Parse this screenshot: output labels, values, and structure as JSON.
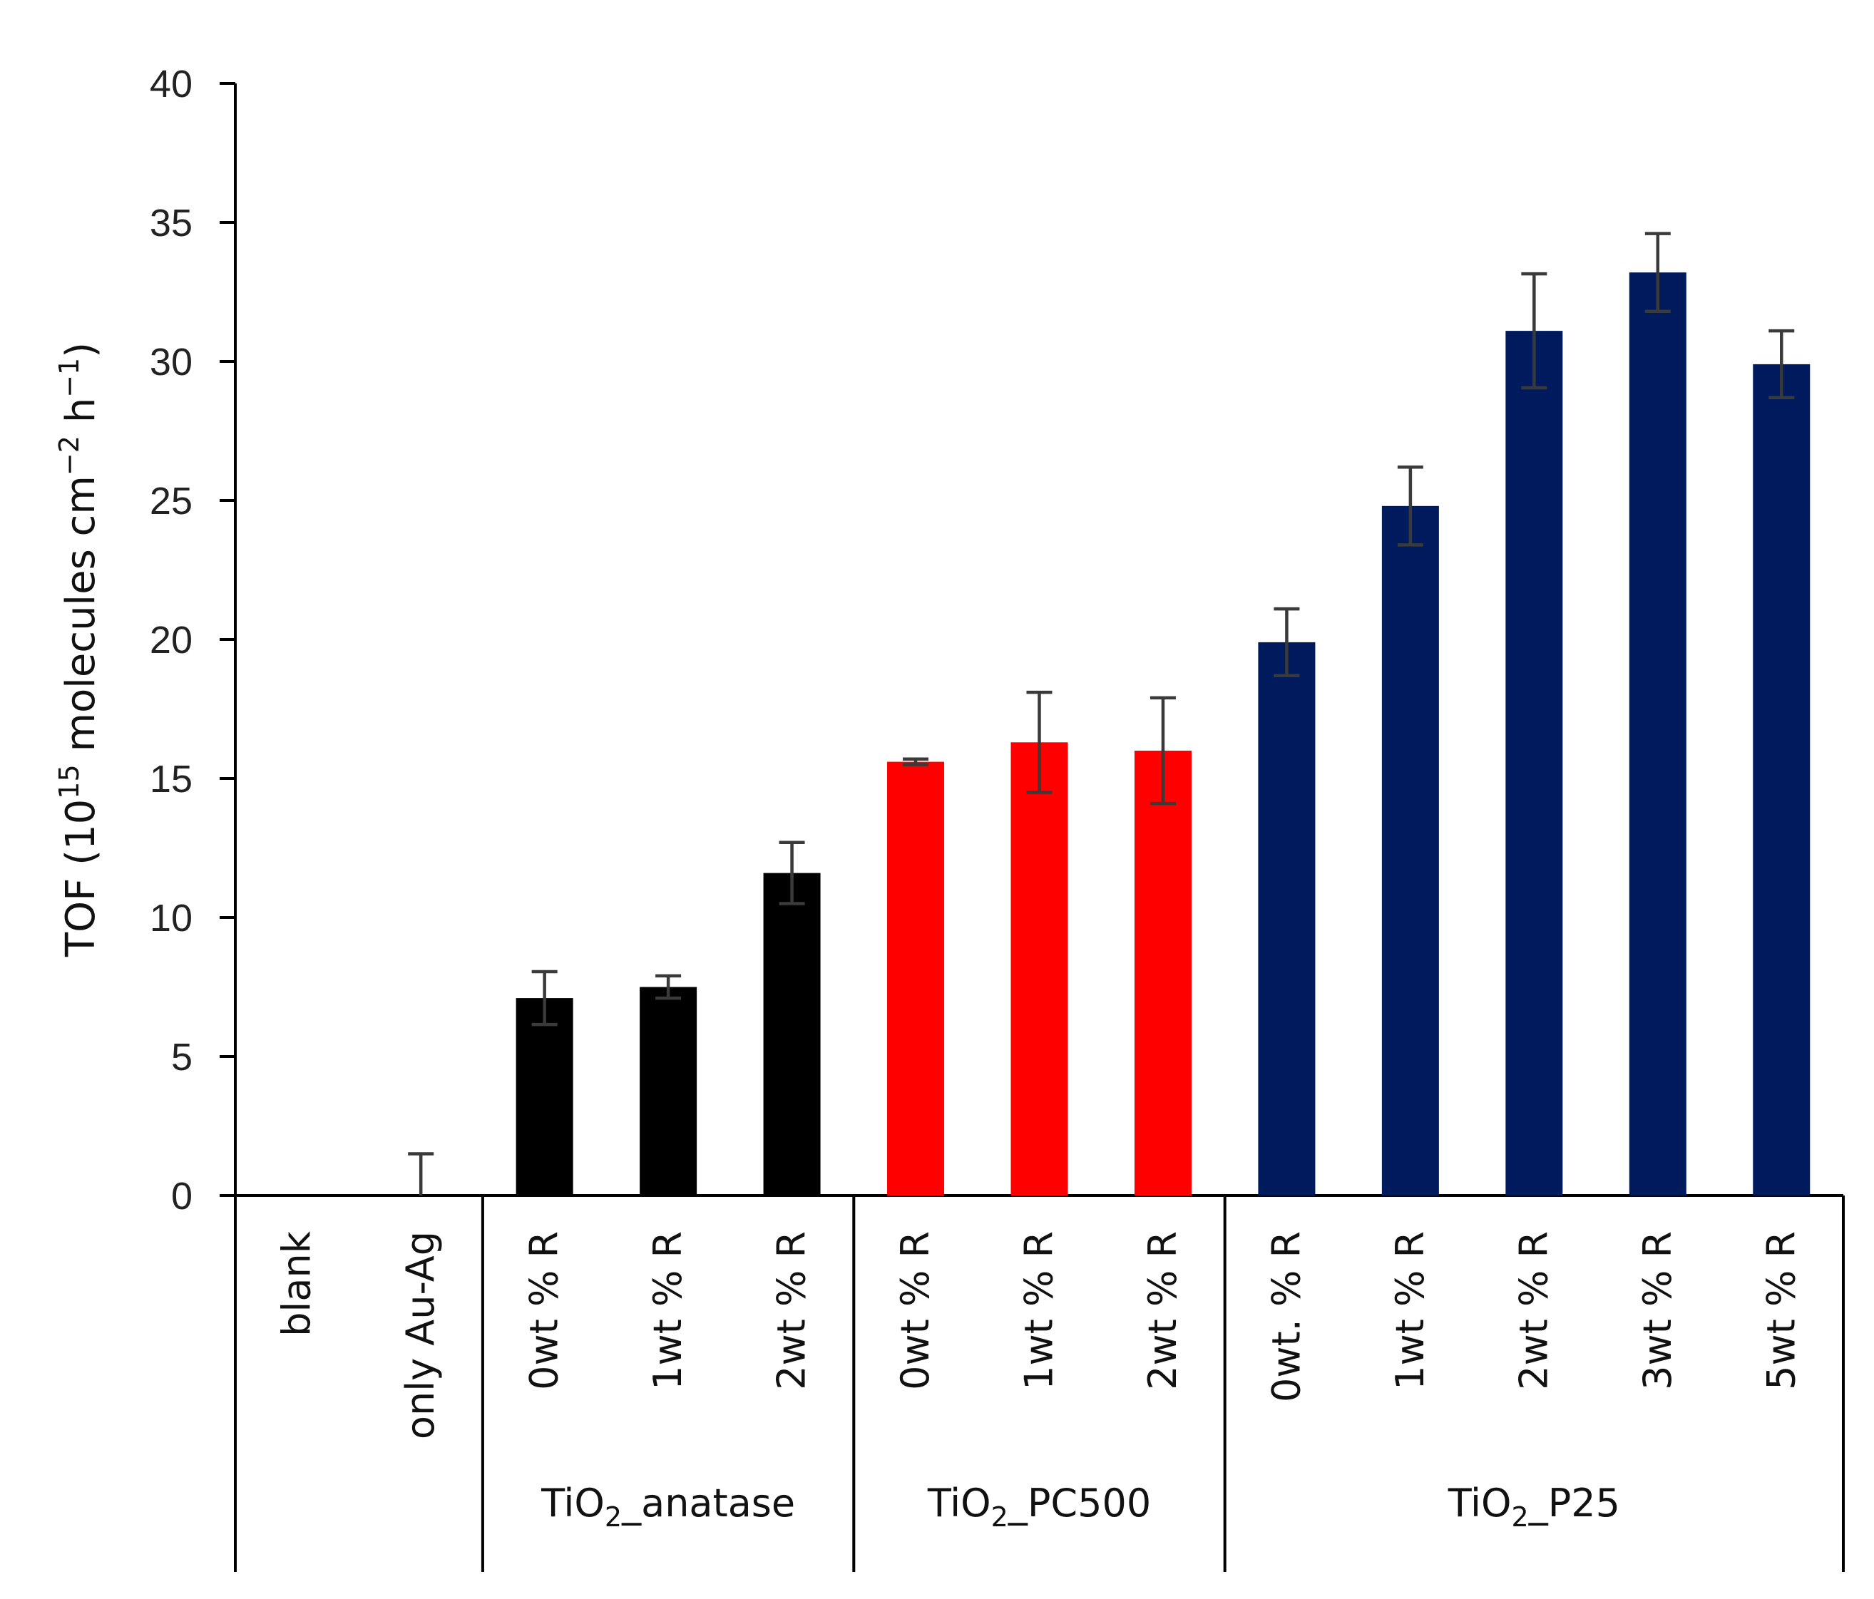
{
  "chart_data": {
    "type": "bar",
    "title": "",
    "xlabel": "",
    "ylabel": "TOF (10 molecules cm h )",
    "ylabel_parts": {
      "prefix": "TOF (10",
      "exp1": "15",
      "middle": " molecules cm",
      "exp2": "−2",
      "h": " h",
      "exp3": "−1",
      "suffix": ")"
    },
    "ylim": [
      0,
      40
    ],
    "yticks": [
      0,
      5,
      10,
      15,
      20,
      25,
      30,
      35,
      40
    ],
    "grid": false,
    "legend": "none",
    "colors": {
      "anatase": "#000000",
      "pc500": "#ff0000",
      "p25": "#001a5e",
      "error": "#3a3a3a",
      "axis": "#000000"
    },
    "categories": [
      "blank",
      "only Au-Ag",
      "0wt % R",
      "1wt % R",
      "2wt % R",
      "0wt % R",
      "1wt % R",
      "2wt % R",
      "0wt. % R",
      "1wt % R",
      "2wt % R",
      "3wt % R",
      "5wt % R"
    ],
    "values": [
      0,
      0,
      7.1,
      7.5,
      11.6,
      15.6,
      16.3,
      16.0,
      19.9,
      24.8,
      31.1,
      33.2,
      29.9
    ],
    "errors": [
      null,
      1.5,
      0.95,
      0.4,
      1.1,
      0.1,
      1.8,
      1.9,
      1.2,
      1.4,
      2.05,
      1.4,
      1.2
    ],
    "bar_groups": [
      "none",
      "none",
      "anatase",
      "anatase",
      "anatase",
      "pc500",
      "pc500",
      "pc500",
      "p25",
      "p25",
      "p25",
      "p25",
      "p25"
    ],
    "groups": [
      {
        "key": "anatase",
        "base": "TiO",
        "sub": "2",
        "rest": "_anatase",
        "start": 2,
        "end": 4
      },
      {
        "key": "pc500",
        "base": "TiO",
        "sub": "2",
        "rest": "_PC500",
        "start": 5,
        "end": 7
      },
      {
        "key": "p25",
        "base": "TiO",
        "sub": "2",
        "rest": "_P25",
        "start": 8,
        "end": 12
      }
    ]
  }
}
